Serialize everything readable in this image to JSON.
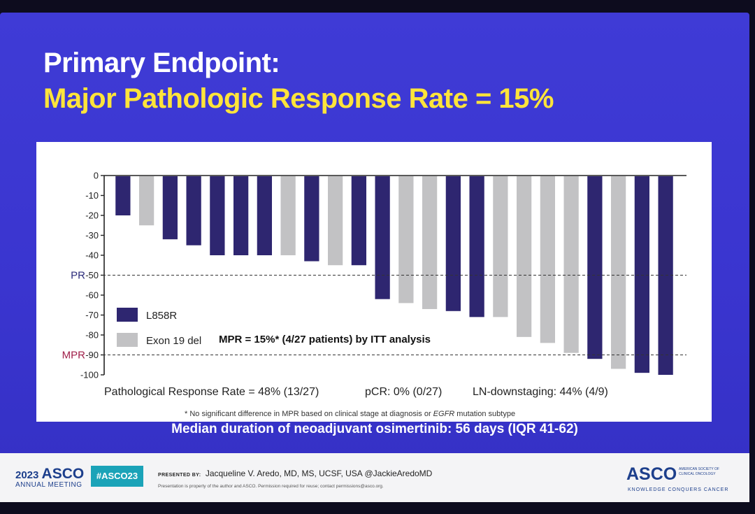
{
  "slide": {
    "title_line1": "Primary Endpoint:",
    "title_line2": "Major Pathologic Response Rate = 15%",
    "median_text": "Median duration of neoadjuvant osimertinib: 56 days (IQR 41-62)"
  },
  "colors": {
    "slide_bg": "#3b37d1",
    "title_white": "#ffffff",
    "title_yellow": "#ffe43a",
    "l858r": "#2e2670",
    "exon19": "#c2c2c4",
    "pr_label": "#2b2b7a",
    "mpr_label": "#a0204a",
    "hashtag_bg": "#1ba3b8"
  },
  "chart_data": {
    "type": "bar",
    "subtype": "waterfall",
    "ylim": [
      -100,
      0
    ],
    "yticks": [
      0,
      -10,
      -20,
      -30,
      -40,
      -50,
      -60,
      -70,
      -80,
      -90,
      -100
    ],
    "ytick_labels": [
      "0",
      "-10",
      "-20",
      "-30",
      "-40",
      "-50",
      "-60",
      "-70",
      "-80",
      "-90",
      "-100"
    ],
    "legend": [
      {
        "name": "L858R",
        "key": "L858R"
      },
      {
        "name": "Exon 19 del",
        "key": "Exon19"
      }
    ],
    "bars": [
      {
        "value": -20,
        "group": "L858R"
      },
      {
        "value": -25,
        "group": "Exon19"
      },
      {
        "value": -32,
        "group": "L858R"
      },
      {
        "value": -35,
        "group": "L858R"
      },
      {
        "value": -40,
        "group": "L858R"
      },
      {
        "value": -40,
        "group": "L858R"
      },
      {
        "value": -40,
        "group": "L858R"
      },
      {
        "value": -40,
        "group": "Exon19"
      },
      {
        "value": -43,
        "group": "L858R"
      },
      {
        "value": -45,
        "group": "Exon19"
      },
      {
        "value": -45,
        "group": "L858R"
      },
      {
        "value": -62,
        "group": "L858R"
      },
      {
        "value": -64,
        "group": "Exon19"
      },
      {
        "value": -67,
        "group": "Exon19"
      },
      {
        "value": -68,
        "group": "L858R"
      },
      {
        "value": -71,
        "group": "L858R"
      },
      {
        "value": -71,
        "group": "Exon19"
      },
      {
        "value": -81,
        "group": "Exon19"
      },
      {
        "value": -84,
        "group": "Exon19"
      },
      {
        "value": -89,
        "group": "Exon19"
      },
      {
        "value": -92,
        "group": "L858R"
      },
      {
        "value": -97,
        "group": "Exon19"
      },
      {
        "value": -99,
        "group": "L858R"
      },
      {
        "value": -100,
        "group": "L858R"
      }
    ],
    "thresholds": [
      {
        "label": "PR",
        "value": -50
      },
      {
        "label": "MPR",
        "value": -90
      }
    ],
    "annotation": "MPR = 15%* (4/27 patients) by ITT analysis",
    "stats": [
      "Pathological Response Rate = 48% (13/27)",
      "pCR: 0% (0/27)",
      "LN-downstaging: 44% (4/9)"
    ],
    "footnote_before": "* No significant difference in MPR based on clinical stage at diagnosis or ",
    "footnote_em": "EGFR",
    "footnote_after": " mutation subtype"
  },
  "footer": {
    "year": "2023",
    "asco": "ASCO",
    "meeting": "ANNUAL MEETING",
    "hashtag": "#ASCO23",
    "presented_by_label": "PRESENTED BY:",
    "presenter": "Jacqueline V. Aredo, MD, MS, UCSF, USA @JackieAredoMD",
    "disclaimer": "Presentation is property of the author and ASCO. Permission required for reuse; contact permissions@asco.org.",
    "logo": "ASCO",
    "society": "AMERICAN SOCIETY OF CLINICAL ONCOLOGY",
    "tagline": "KNOWLEDGE CONQUERS CANCER"
  }
}
